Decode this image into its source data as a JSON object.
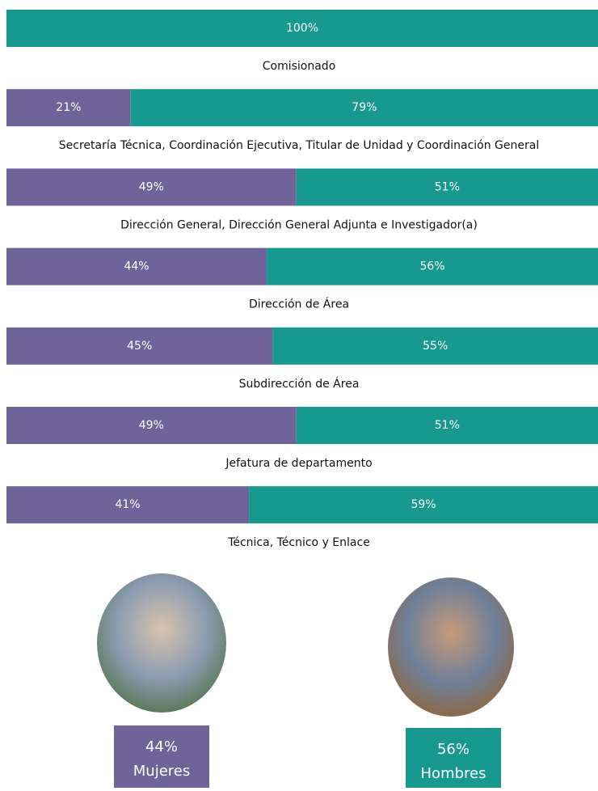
{
  "chart_data": {
    "type": "bar",
    "orientation": "horizontal",
    "stacked": true,
    "categories": [
      "Comisionado",
      "Secretaría Técnica, Coordinación Ejecutiva, Titular de Unidad y Coordinación General",
      "Dirección General, Dirección General Adjunta e Investigador(a)",
      "Dirección de Área",
      "Subdirección de Área",
      "Jefatura de departamento",
      "Técnica, Técnico y Enlace"
    ],
    "xlim": [
      0,
      100
    ],
    "series": [
      {
        "name": "Mujeres",
        "color": "#6e6499",
        "values": [
          null,
          21,
          49,
          44,
          45,
          49,
          41
        ],
        "value_labels": [
          null,
          "21%",
          "49%",
          "44%",
          "45%",
          "49%",
          "41%"
        ]
      },
      {
        "name": "Hombres",
        "color": "#17998f",
        "values": [
          100,
          79,
          51,
          56,
          55,
          51,
          59
        ],
        "value_labels": [
          "100%",
          "79%",
          "51%",
          "56%",
          "55%",
          "51%",
          "59%"
        ]
      }
    ],
    "totals": {
      "values": [
        44,
        56
      ],
      "value_labels": [
        "44%",
        "56%"
      ]
    }
  }
}
